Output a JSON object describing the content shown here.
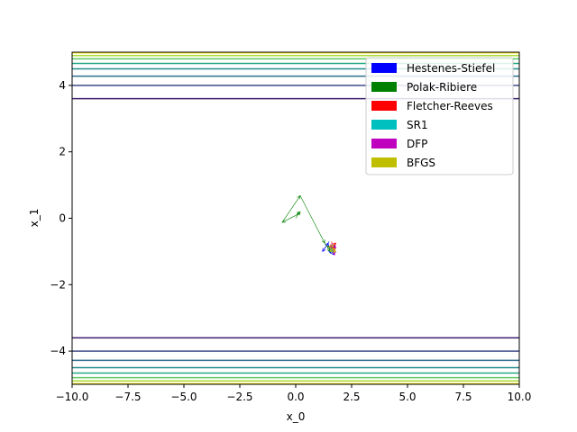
{
  "chart_data": {
    "type": "line",
    "title": "",
    "xlabel": "x_0",
    "ylabel": "x_1",
    "xlim": [
      -10,
      10
    ],
    "ylim": [
      -5,
      5
    ],
    "grid": false,
    "legend_placement": "top-right",
    "x_ticks": [
      -10,
      -7.5,
      -5,
      -2.5,
      0,
      2.5,
      5,
      7.5,
      10
    ],
    "x_tick_labels": [
      "−10.0",
      "−7.5",
      "−5.0",
      "−2.5",
      "0.0",
      "2.5",
      "5.0",
      "7.5",
      "10.0"
    ],
    "y_ticks": [
      4,
      2,
      0,
      -2,
      -4
    ],
    "y_tick_labels": [
      "4",
      "2",
      "0",
      "−2",
      "−4"
    ],
    "contour_levels": [
      {
        "y": 3.6,
        "color": "#3b1f6e"
      },
      {
        "y": 4.0,
        "color": "#3f4a8a"
      },
      {
        "y": 4.28,
        "color": "#2d6e8e"
      },
      {
        "y": 4.5,
        "color": "#238a8d"
      },
      {
        "y": 4.66,
        "color": "#23a983"
      },
      {
        "y": 4.8,
        "color": "#5ec962"
      },
      {
        "y": 4.9,
        "color": "#addc30"
      },
      {
        "y": 4.98,
        "color": "#fde725"
      },
      {
        "y": -3.6,
        "color": "#3b1f6e"
      },
      {
        "y": -4.0,
        "color": "#3f4a8a"
      },
      {
        "y": -4.28,
        "color": "#2d6e8e"
      },
      {
        "y": -4.5,
        "color": "#238a8d"
      },
      {
        "y": -4.66,
        "color": "#23a983"
      },
      {
        "y": -4.8,
        "color": "#5ec962"
      },
      {
        "y": -4.9,
        "color": "#addc30"
      },
      {
        "y": -4.98,
        "color": "#fde725"
      }
    ],
    "series": [
      {
        "name": "Hestenes-Stiefel",
        "color": "#0000ff",
        "points": [
          [
            1.5,
            -0.7
          ],
          [
            1.2,
            -1.0
          ],
          [
            1.45,
            -0.75
          ],
          [
            1.55,
            -1.05
          ],
          [
            1.75,
            -0.8
          ],
          [
            1.55,
            -0.95
          ],
          [
            1.7,
            -1.1
          ],
          [
            1.6,
            -0.9
          ]
        ]
      },
      {
        "name": "Polak-Ribiere",
        "color": "#008000",
        "points": [
          [
            0.0,
            0.0
          ],
          [
            0.2,
            0.2
          ],
          [
            0.05,
            0.1
          ],
          [
            -0.6,
            -0.12
          ],
          [
            0.2,
            0.68
          ],
          [
            1.3,
            -0.75
          ],
          [
            1.55,
            -1.0
          ],
          [
            1.45,
            -0.82
          ]
        ]
      },
      {
        "name": "Fletcher-Reeves",
        "color": "#ff0000",
        "points": [
          [
            1.6,
            -0.7
          ],
          [
            1.7,
            -0.95
          ],
          [
            1.5,
            -0.85
          ],
          [
            1.8,
            -0.75
          ],
          [
            1.65,
            -1.0
          ],
          [
            1.75,
            -0.85
          ]
        ]
      },
      {
        "name": "SR1",
        "color": "#00bfbf",
        "points": [
          [
            1.5,
            -0.85
          ],
          [
            1.7,
            -1.05
          ],
          [
            1.55,
            -0.95
          ],
          [
            1.65,
            -0.9
          ]
        ]
      },
      {
        "name": "DFP",
        "color": "#bf00bf",
        "points": [
          [
            1.6,
            -0.75
          ],
          [
            1.8,
            -0.9
          ],
          [
            1.55,
            -0.8
          ],
          [
            1.75,
            -1.1
          ],
          [
            1.7,
            -0.95
          ]
        ]
      },
      {
        "name": "BFGS",
        "color": "#bfbf00",
        "points": [
          [
            1.45,
            -0.9
          ],
          [
            1.7,
            -0.8
          ],
          [
            1.55,
            -1.0
          ],
          [
            1.8,
            -1.0
          ],
          [
            1.65,
            -0.9
          ]
        ]
      }
    ]
  }
}
